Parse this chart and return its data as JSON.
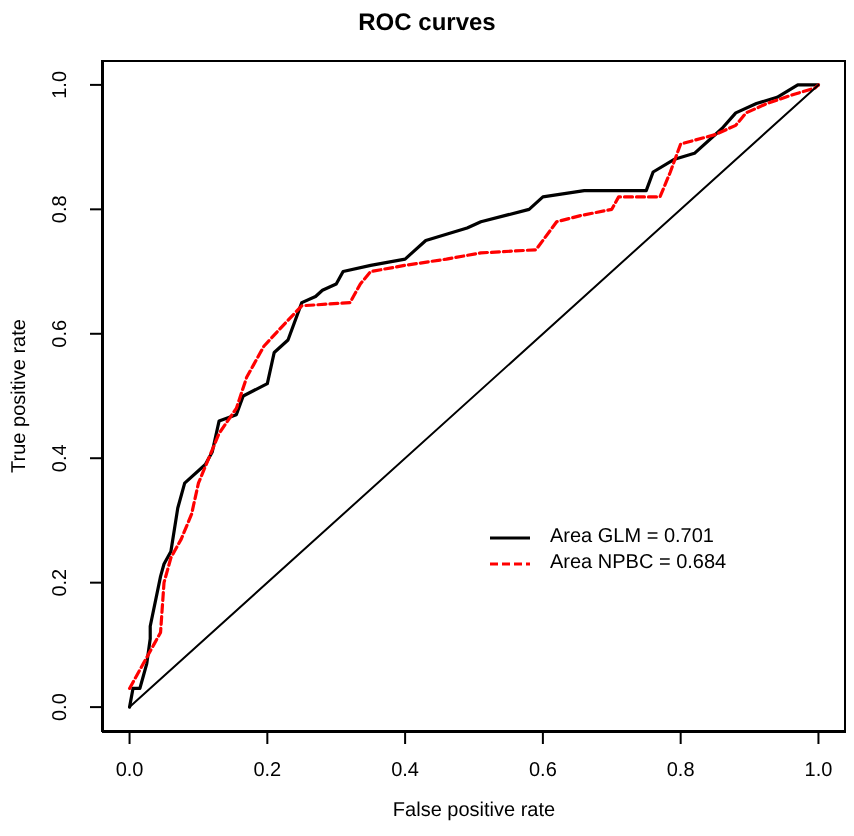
{
  "chart_data": {
    "type": "line",
    "title": "ROC curves",
    "xlabel": "False positive rate",
    "ylabel": "True positive rate",
    "xlim": [
      -0.04,
      1.04
    ],
    "ylim": [
      -0.04,
      1.04
    ],
    "xticks": [
      {
        "value": 0,
        "label": "0.0"
      },
      {
        "value": 0.2,
        "label": "0.2"
      },
      {
        "value": 0.4,
        "label": "0.4"
      },
      {
        "value": 0.6,
        "label": "0.6"
      },
      {
        "value": 0.8,
        "label": "0.8"
      },
      {
        "value": 1,
        "label": "1.0"
      }
    ],
    "yticks": [
      {
        "value": 0,
        "label": "0.0"
      },
      {
        "value": 0.2,
        "label": "0.2"
      },
      {
        "value": 0.4,
        "label": "0.4"
      },
      {
        "value": 0.6,
        "label": "0.6"
      },
      {
        "value": 0.8,
        "label": "0.8"
      },
      {
        "value": 1,
        "label": "1.0"
      }
    ],
    "legend": "bottom right",
    "marker": "none",
    "series": [
      {
        "name": "Area GLM = 0.701",
        "color": "#000000",
        "line_style": "solid",
        "x": [
          0,
          0.005,
          0.015,
          0.02,
          0.025,
          0.03,
          0.03,
          0.045,
          0.05,
          0.06,
          0.07,
          0.08,
          0.11,
          0.12,
          0.13,
          0.155,
          0.165,
          0.2,
          0.21,
          0.23,
          0.25,
          0.27,
          0.28,
          0.3,
          0.31,
          0.35,
          0.4,
          0.41,
          0.43,
          0.46,
          0.49,
          0.51,
          0.58,
          0.6,
          0.66,
          0.75,
          0.76,
          0.79,
          0.82,
          0.86,
          0.88,
          0.91,
          0.94,
          0.97,
          1
        ],
        "values": [
          0,
          0.03,
          0.03,
          0.05,
          0.07,
          0.11,
          0.13,
          0.21,
          0.23,
          0.25,
          0.32,
          0.36,
          0.39,
          0.41,
          0.46,
          0.47,
          0.5,
          0.52,
          0.57,
          0.59,
          0.65,
          0.66,
          0.67,
          0.68,
          0.7,
          0.71,
          0.72,
          0.73,
          0.75,
          0.76,
          0.77,
          0.78,
          0.8,
          0.82,
          0.83,
          0.83,
          0.86,
          0.88,
          0.89,
          0.93,
          0.955,
          0.97,
          0.98,
          1,
          1
        ]
      },
      {
        "name": "Area NPBC = 0.684",
        "color": "#ff0000",
        "line_style": "dashed",
        "x": [
          0,
          0.02,
          0.035,
          0.045,
          0.05,
          0.06,
          0.075,
          0.09,
          0.1,
          0.115,
          0.13,
          0.155,
          0.17,
          0.18,
          0.195,
          0.22,
          0.25,
          0.32,
          0.335,
          0.35,
          0.4,
          0.46,
          0.51,
          0.59,
          0.62,
          0.655,
          0.7,
          0.71,
          0.77,
          0.785,
          0.8,
          0.85,
          0.88,
          0.895,
          0.925,
          0.965,
          0.995,
          1
        ],
        "values": [
          0.03,
          0.07,
          0.1,
          0.12,
          0.2,
          0.24,
          0.27,
          0.31,
          0.36,
          0.4,
          0.44,
          0.48,
          0.53,
          0.55,
          0.58,
          0.61,
          0.645,
          0.65,
          0.68,
          0.7,
          0.71,
          0.72,
          0.73,
          0.735,
          0.78,
          0.79,
          0.8,
          0.82,
          0.82,
          0.86,
          0.905,
          0.92,
          0.935,
          0.955,
          0.97,
          0.985,
          0.995,
          1
        ]
      },
      {
        "color": "#000000",
        "line_style": "solid",
        "x": [
          0,
          1
        ],
        "values": [
          0,
          1
        ]
      }
    ]
  }
}
